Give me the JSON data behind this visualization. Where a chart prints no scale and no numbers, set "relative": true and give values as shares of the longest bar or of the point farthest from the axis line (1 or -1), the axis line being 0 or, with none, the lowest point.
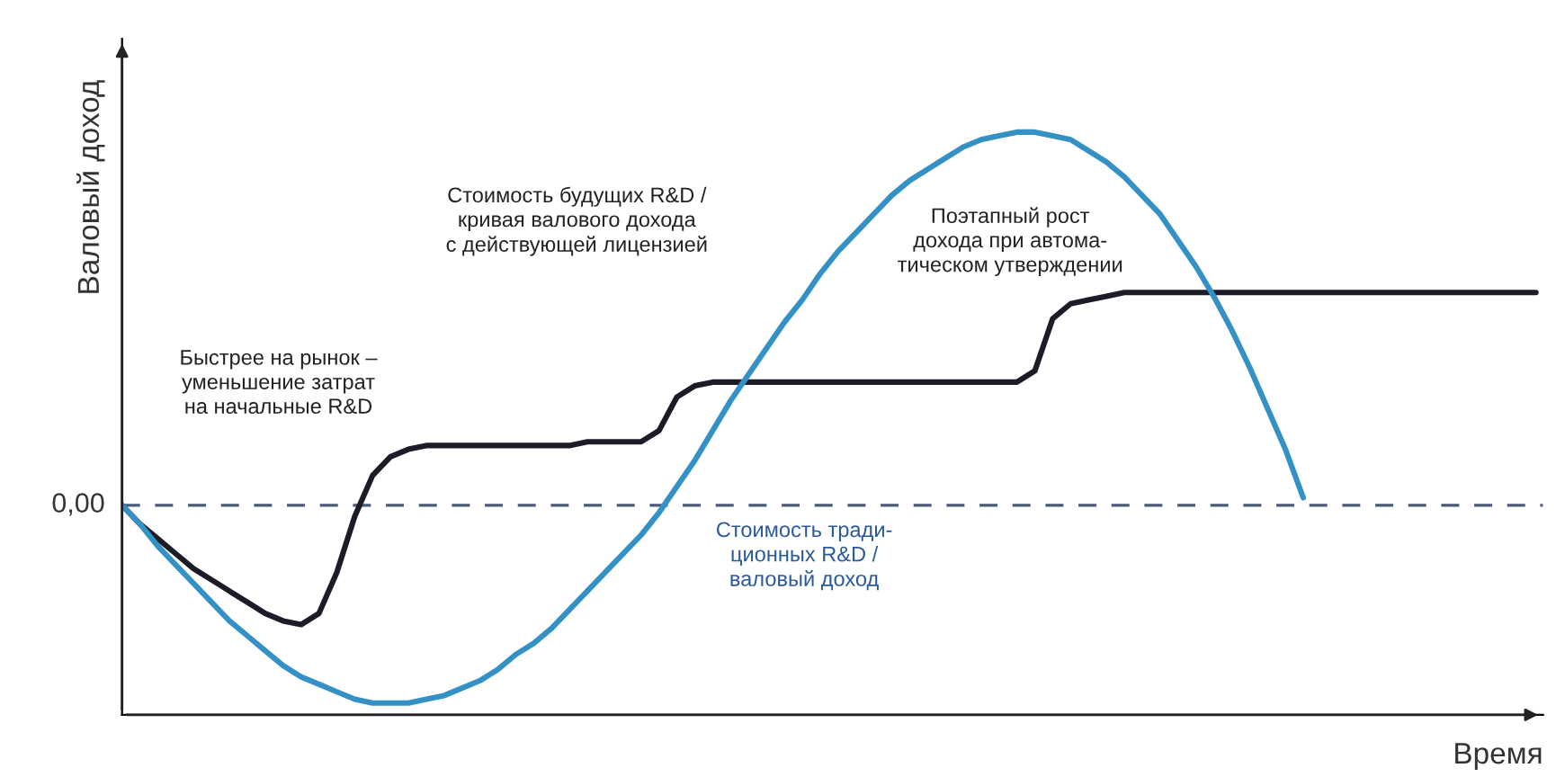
{
  "chart_data": {
    "type": "line",
    "relative": true,
    "ylabel": "Валовый доход",
    "xlabel": "Время",
    "categories": [
      null,
      null,
      null,
      null,
      null,
      null,
      null,
      null,
      null,
      null,
      null,
      null,
      null,
      null,
      null,
      null,
      null,
      null,
      null,
      null,
      null,
      null,
      null,
      null,
      null,
      null,
      null,
      null,
      null,
      null,
      null,
      null,
      null,
      null,
      null,
      null,
      null,
      null,
      null,
      null,
      null,
      null,
      null,
      null,
      null,
      null,
      null,
      null,
      null,
      null,
      null,
      null,
      null,
      null,
      null,
      null,
      null,
      null,
      null,
      null,
      null,
      null,
      null,
      null,
      null,
      null,
      null,
      null,
      null,
      null,
      null,
      null,
      null,
      null,
      null,
      null,
      null,
      null,
      null,
      null
    ],
    "series": [
      {
        "color": "#1c1c28",
        "values": [
          0,
          -0.05,
          -0.09,
          -0.13,
          -0.17,
          -0.2,
          -0.23,
          -0.26,
          -0.29,
          -0.31,
          -0.32,
          -0.29,
          -0.18,
          -0.03,
          0.08,
          0.13,
          0.15,
          0.16,
          0.16,
          0.16,
          0.16,
          0.16,
          0.16,
          0.16,
          0.16,
          0.16,
          0.17,
          0.17,
          0.17,
          0.17,
          0.2,
          0.29,
          0.32,
          0.33,
          0.33,
          0.33,
          0.33,
          0.33,
          0.33,
          0.33,
          0.33,
          0.33,
          0.33,
          0.33,
          0.33,
          0.33,
          0.33,
          0.33,
          0.33,
          0.33,
          0.33,
          0.36,
          0.5,
          0.54,
          0.55,
          0.56,
          0.57,
          0.57,
          0.57,
          0.57,
          0.57,
          0.57,
          0.57,
          0.57,
          0.57,
          0.57,
          0.57,
          0.57,
          0.57,
          0.57,
          0.57,
          0.57,
          0.57,
          0.57,
          0.57,
          0.57,
          0.57,
          0.57,
          0.57,
          0.57
        ]
      },
      {
        "color": "#3391c6",
        "values": [
          0,
          -0.05,
          -0.11,
          -0.16,
          -0.21,
          -0.26,
          -0.31,
          -0.35,
          -0.39,
          -0.43,
          -0.46,
          -0.48,
          -0.5,
          -0.52,
          -0.53,
          -0.53,
          -0.53,
          -0.52,
          -0.51,
          -0.49,
          -0.47,
          -0.44,
          -0.4,
          -0.37,
          -0.33,
          -0.28,
          -0.23,
          -0.18,
          -0.13,
          -0.08,
          -0.02,
          0.05,
          0.12,
          0.2,
          0.28,
          0.35,
          0.42,
          0.49,
          0.55,
          0.62,
          0.68,
          0.73,
          0.78,
          0.83,
          0.87,
          0.9,
          0.93,
          0.96,
          0.98,
          0.99,
          1.0,
          1.0,
          0.99,
          0.98,
          0.95,
          0.92,
          0.88,
          0.83,
          0.78,
          0.71,
          0.64,
          0.56,
          0.47,
          0.37,
          0.26,
          0.15,
          0.02,
          null,
          null,
          null,
          null,
          null,
          null,
          null,
          null,
          null,
          null,
          null,
          null,
          null
        ]
      }
    ],
    "ref_lines": [
      {
        "axis": "y",
        "value": 0,
        "label": "0,00",
        "line_style": "dashed",
        "color": "#4a5a78"
      }
    ],
    "annotations": [
      "Быстрее на рынок –\nуменьшение затрат\nна начальные R&D",
      "Стоимость будущих R&D /\nкривая валового дохода\nс действующей лицензией",
      "Поэтапный рост\nдохода при автома-\nтическом утверждении",
      "Стоимость тради-\nционных R&D /\nваловый доход"
    ],
    "grid": false,
    "legend": false
  }
}
